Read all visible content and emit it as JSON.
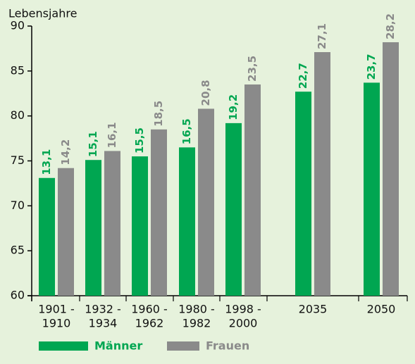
{
  "chart_data": {
    "type": "bar",
    "y_label": "Lebensjahre",
    "categories": [
      [
        "1901 -",
        "1910"
      ],
      [
        "1932 -",
        "1934"
      ],
      [
        "1960 -",
        "1962"
      ],
      [
        "1980 -",
        "1982"
      ],
      [
        "1998 -",
        "2000"
      ],
      [
        "2035"
      ],
      [
        "2050"
      ]
    ],
    "series": [
      {
        "name": "Männer",
        "color": "#00a651",
        "values": [
          13.1,
          15.1,
          15.5,
          16.5,
          19.2,
          22.7,
          23.7
        ],
        "value_labels": [
          "13,1",
          "15,1",
          "15,5",
          "16,5",
          "19,2",
          "22,7",
          "23,7"
        ]
      },
      {
        "name": "Frauen",
        "color": "#8a8a8a",
        "values": [
          14.2,
          16.1,
          18.5,
          20.8,
          23.5,
          27.1,
          28.2
        ],
        "value_labels": [
          "14,2",
          "16,1",
          "18,5",
          "20,8",
          "23,5",
          "27,1",
          "28,2"
        ]
      }
    ],
    "ylim": [
      60,
      90
    ],
    "yticks": [
      60,
      65,
      70,
      75,
      80,
      85,
      90
    ],
    "grid": false,
    "legend": "bottom"
  }
}
